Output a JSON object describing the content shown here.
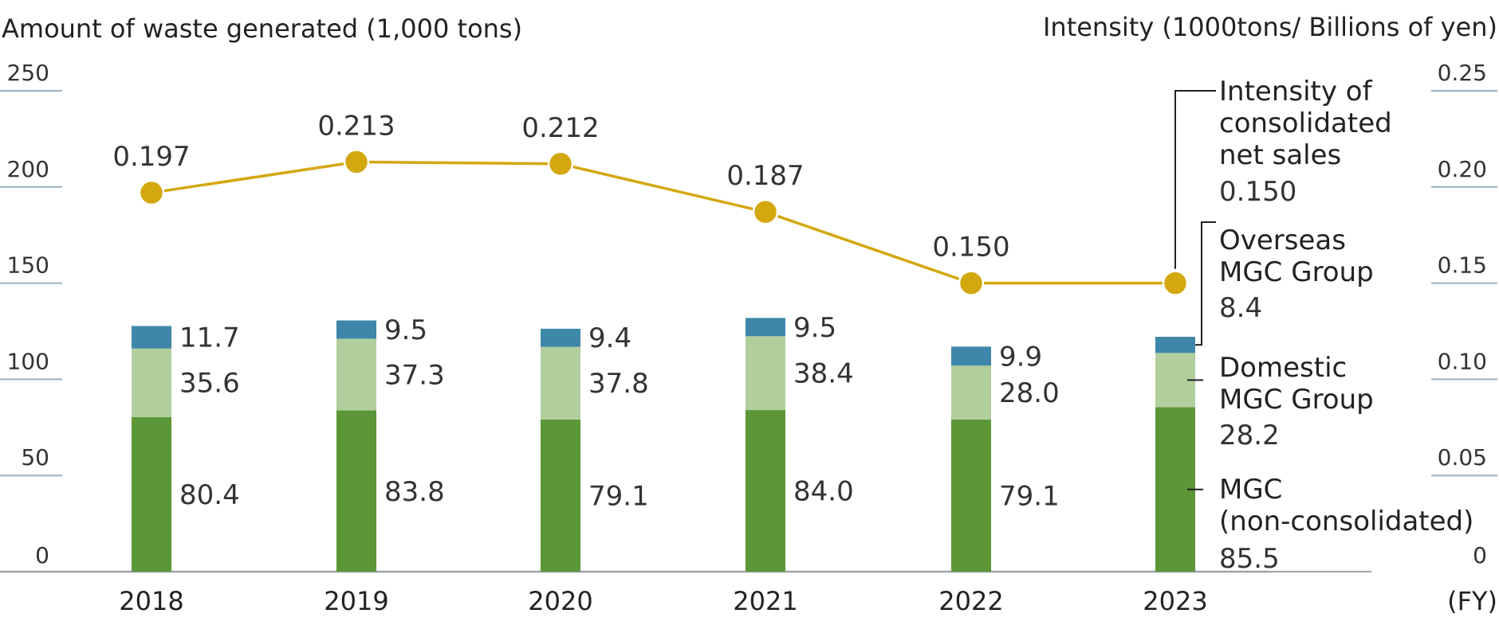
{
  "chart_data": {
    "type": "bar+line",
    "left_axis_title": "Amount of waste generated (1,000 tons)",
    "right_axis_title": "Intensity (1000tons/ Billions of yen)",
    "x_unit_label": "(FY)",
    "categories": [
      "2018",
      "2019",
      "2020",
      "2021",
      "2022",
      "2023"
    ],
    "left_ylim": [
      0,
      250
    ],
    "left_ticks": [
      "0",
      "50",
      "100",
      "150",
      "200",
      "250"
    ],
    "right_ylim": [
      0,
      0.25
    ],
    "right_ticks": [
      "0",
      "0.05",
      "0.10",
      "0.15",
      "0.20",
      "0.25"
    ],
    "bar_series": [
      {
        "name": "MGC (non-consolidated)",
        "legend_lines": [
          "MGC",
          "(non-consolidated)"
        ],
        "color": "#5b9637",
        "values": [
          80.4,
          83.8,
          79.1,
          84.0,
          79.1,
          85.5
        ],
        "labels": [
          "80.4",
          "83.8",
          "79.1",
          "84.0",
          "79.1",
          "85.5"
        ]
      },
      {
        "name": "Domestic MGC Group",
        "legend_lines": [
          "Domestic",
          "MGC Group"
        ],
        "color": "#b1cf9c",
        "values": [
          35.6,
          37.3,
          37.8,
          38.4,
          28.0,
          28.2
        ],
        "labels": [
          "35.6",
          "37.3",
          "37.8",
          "38.4",
          "28.0",
          "28.2"
        ]
      },
      {
        "name": "Overseas MGC Group",
        "legend_lines": [
          "Overseas",
          "MGC Group"
        ],
        "color": "#3f87aa",
        "values": [
          11.7,
          9.5,
          9.4,
          9.5,
          9.9,
          8.4
        ],
        "labels": [
          "11.7",
          "9.5",
          "9.4",
          "9.5",
          "9.9",
          "8.4"
        ]
      }
    ],
    "line_series": {
      "name": "Intensity of consolidated net sales",
      "legend_lines": [
        "Intensity of",
        "consolidated",
        "net sales"
      ],
      "color": "#d3a80f",
      "values": [
        0.197,
        0.213,
        0.212,
        0.187,
        0.15,
        0.15
      ],
      "labels": [
        "0.197",
        "0.213",
        "0.212",
        "0.187",
        "0.150",
        "0.150"
      ]
    }
  }
}
